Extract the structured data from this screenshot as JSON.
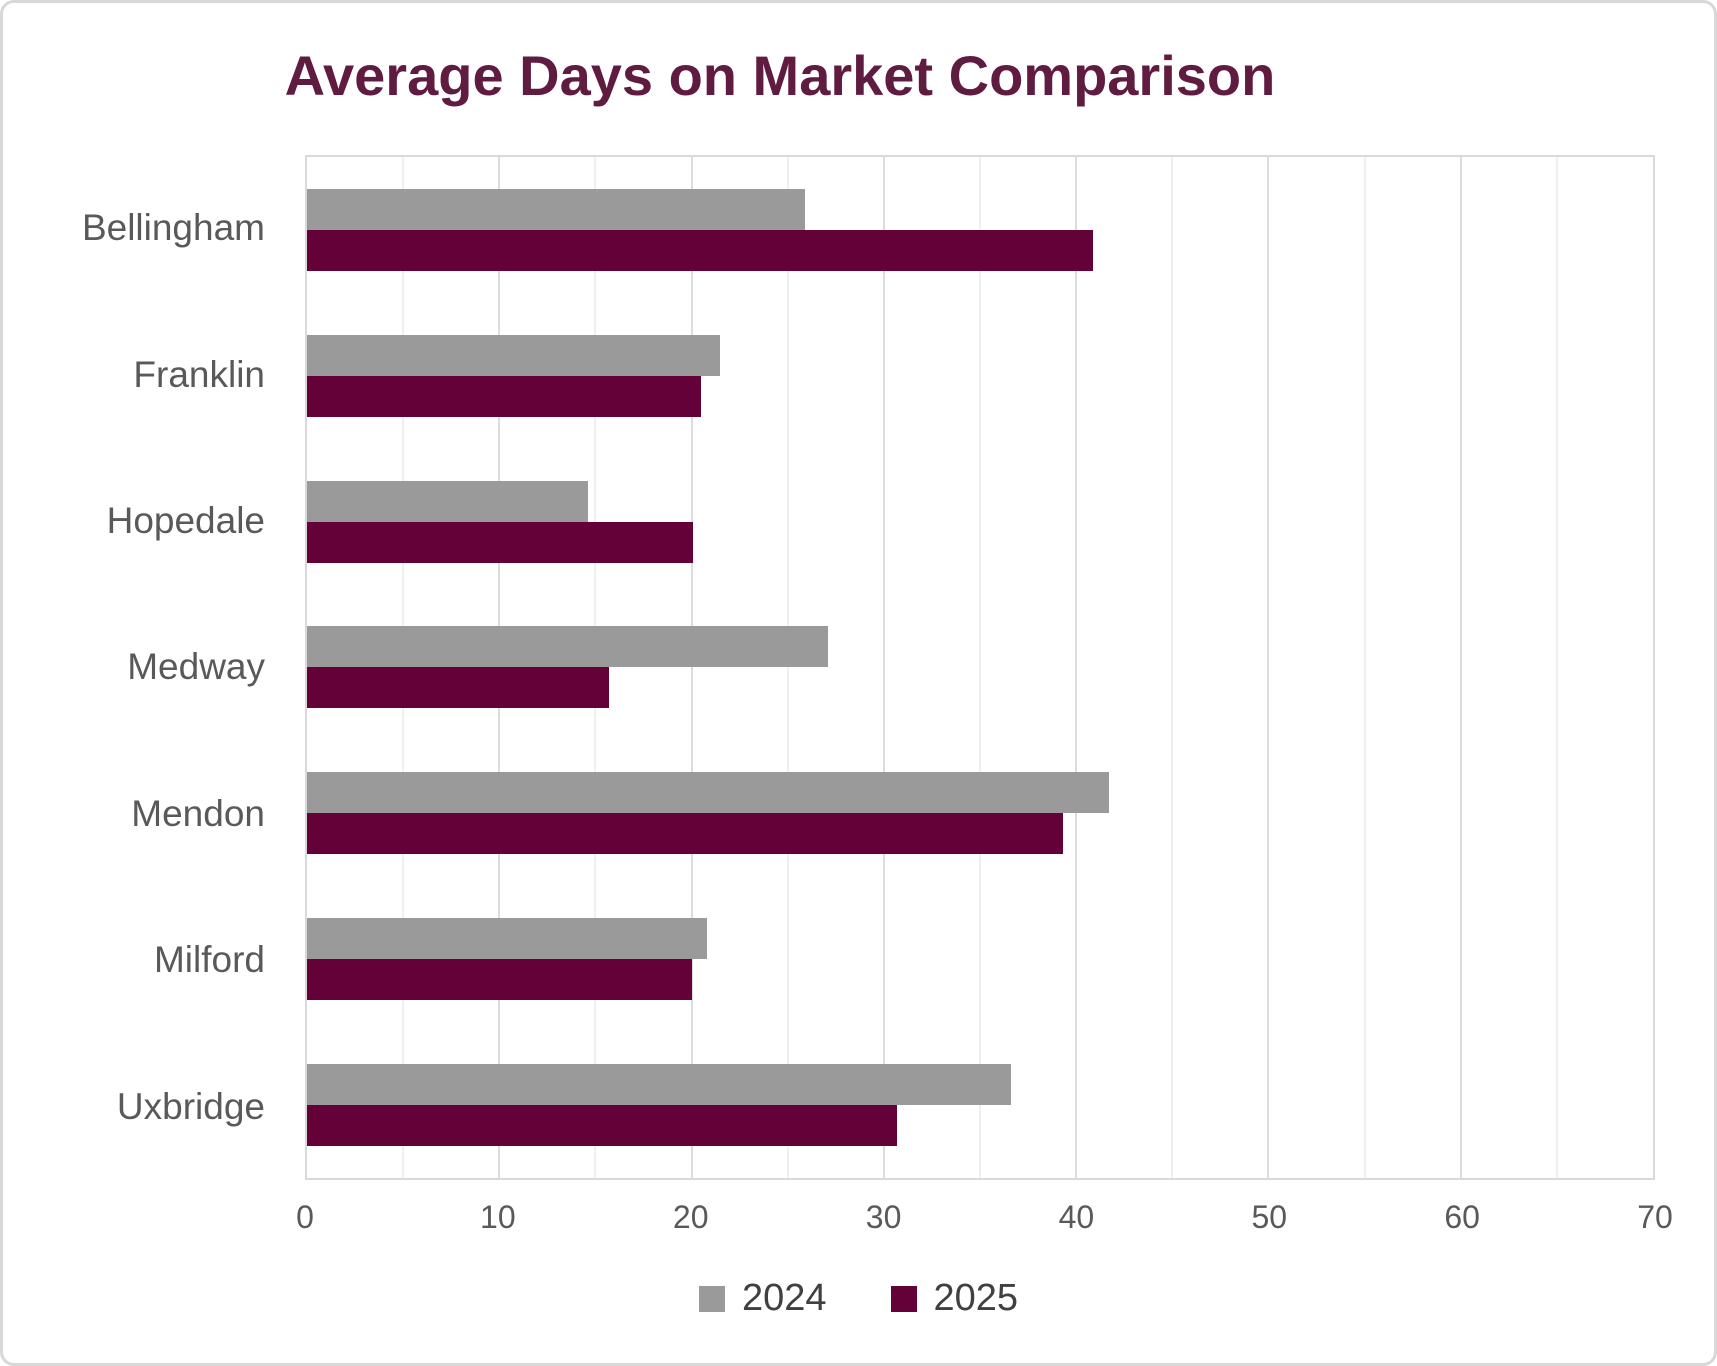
{
  "chart_data": {
    "type": "bar",
    "orientation": "horizontal",
    "title": "Average Days on Market Comparison",
    "categories": [
      "Bellingham",
      "Franklin",
      "Hopedale",
      "Medway",
      "Mendon",
      "Milford",
      "Uxbridge"
    ],
    "series": [
      {
        "name": "2024",
        "color": "#9a9a9a",
        "values": [
          25.9,
          21.5,
          14.6,
          27.1,
          41.7,
          20.8,
          36.6
        ]
      },
      {
        "name": "2025",
        "color": "#650139",
        "values": [
          40.9,
          20.5,
          20.1,
          15.7,
          39.3,
          20.0,
          30.7
        ]
      }
    ],
    "xlim": [
      0,
      70
    ],
    "x_ticks": [
      0,
      10,
      20,
      30,
      40,
      50,
      60,
      70
    ],
    "gridline_step": 5,
    "grid": true,
    "legend_position": "bottom",
    "xlabel": "",
    "ylabel": ""
  },
  "colors": {
    "title_text": "#601b41",
    "axis_text": "#595959",
    "legend_text": "#404040",
    "gridline_major": "#dcdcdc",
    "gridline_minor": "#f0f0f0",
    "plot_border": "#d9d9d9",
    "card_border": "#d8d8d8",
    "background": "#ffffff"
  }
}
